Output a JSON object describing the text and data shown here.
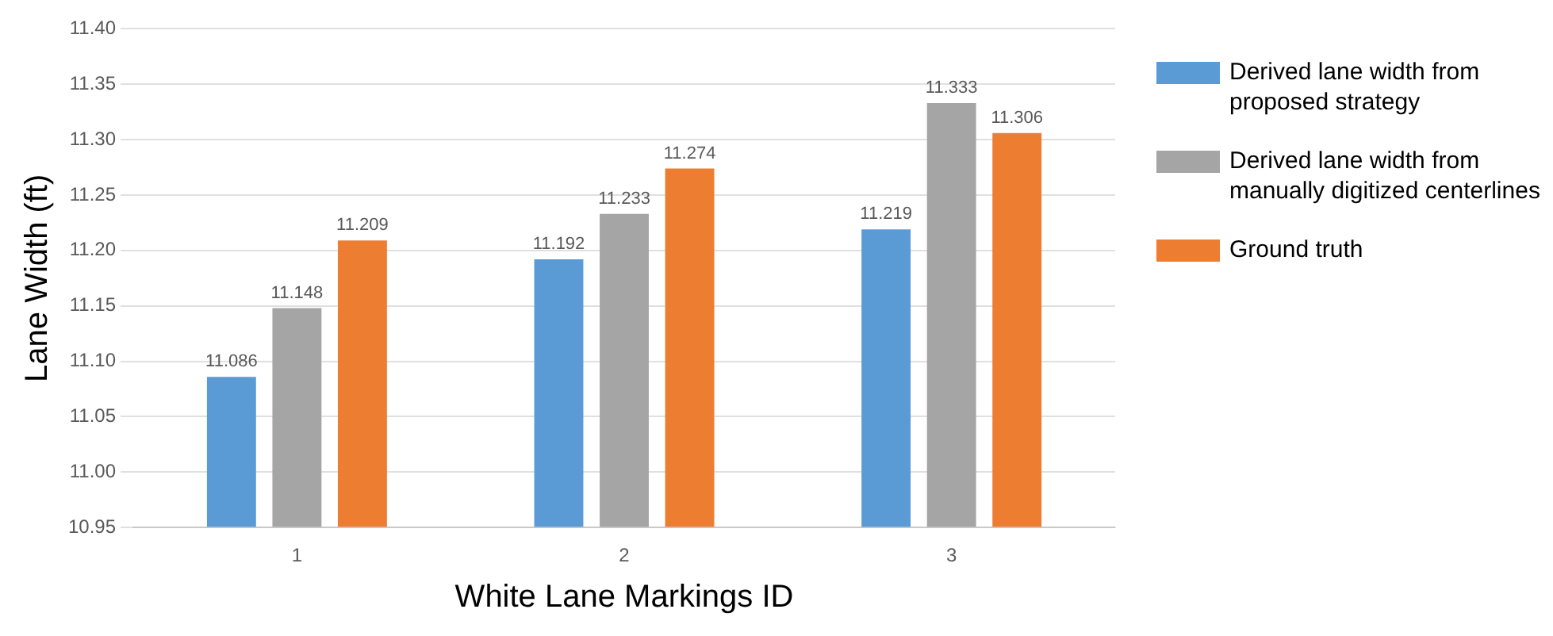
{
  "chart_data": {
    "type": "bar",
    "xlabel": "White Lane Markings ID",
    "ylabel": "Lane Width (ft)",
    "categories": [
      "1",
      "2",
      "3"
    ],
    "series": [
      {
        "name": "Derived lane width from proposed strategy",
        "color": "#5b9bd5",
        "values": [
          11.086,
          11.192,
          11.219
        ]
      },
      {
        "name": "Derived lane width from manually digitized centerlines",
        "color": "#a5a5a5",
        "values": [
          11.148,
          11.233,
          11.333
        ]
      },
      {
        "name": "Ground truth",
        "color": "#ed7d31",
        "values": [
          11.209,
          11.274,
          11.306
        ]
      }
    ],
    "ylim": [
      10.95,
      11.4
    ],
    "yticks": [
      {
        "value": 10.95,
        "label": "10.95"
      },
      {
        "value": 11.0,
        "label": "11.00"
      },
      {
        "value": 11.05,
        "label": "11.05"
      },
      {
        "value": 11.1,
        "label": "11.10"
      },
      {
        "value": 11.15,
        "label": "11.15"
      },
      {
        "value": 11.2,
        "label": "11.20"
      },
      {
        "value": 11.25,
        "label": "11.25"
      },
      {
        "value": 11.3,
        "label": "11.30"
      },
      {
        "value": 11.35,
        "label": "11.35"
      },
      {
        "value": 11.4,
        "label": "11.40"
      }
    ],
    "grid": "y",
    "legend": "right",
    "data_labels": true
  }
}
